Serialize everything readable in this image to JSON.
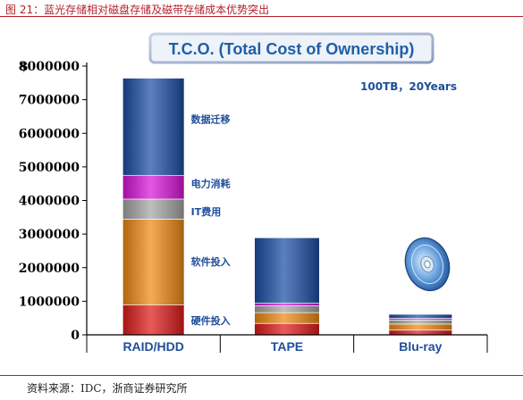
{
  "figure_title": "图 21：蓝光存储相对磁盘存储及磁带存储成本优势突出",
  "source": "资料来源：IDC，浙商证券研究所",
  "colors": {
    "title_red": "#b5202a",
    "chart_title_blue": "#1f5fa8",
    "label_blue": "#1f4e9a"
  },
  "chart_data": {
    "type": "bar",
    "stacked": true,
    "title": "T.C.O. (Total Cost of Ownership)",
    "annotation": "100TB，20Years",
    "y_unit_prefix": "$",
    "ylim": [
      0,
      8000000
    ],
    "y_ticks": [
      "8000000",
      "7000000",
      "6000000",
      "5000000",
      "4000000",
      "3000000",
      "2000000",
      "1000000",
      "0"
    ],
    "categories": [
      "RAID/HDD",
      "TAPE",
      "Blu-ray"
    ],
    "series": [
      {
        "name": "硬件投入",
        "color": "#e01b1b",
        "values": [
          900000,
          350000,
          150000
        ]
      },
      {
        "name": "软件投入",
        "color": "#f08a14",
        "values": [
          2550000,
          320000,
          180000
        ]
      },
      {
        "name": "IT费用",
        "color": "#a6a6a6",
        "values": [
          600000,
          200000,
          120000
        ]
      },
      {
        "name": "电力消耗",
        "color": "#d916d9",
        "values": [
          700000,
          80000,
          50000
        ]
      },
      {
        "name": "数据迁移",
        "color": "#1d4fa6",
        "values": [
          2900000,
          1950000,
          120000
        ]
      }
    ],
    "icon": "blu-ray-disc-icon"
  }
}
